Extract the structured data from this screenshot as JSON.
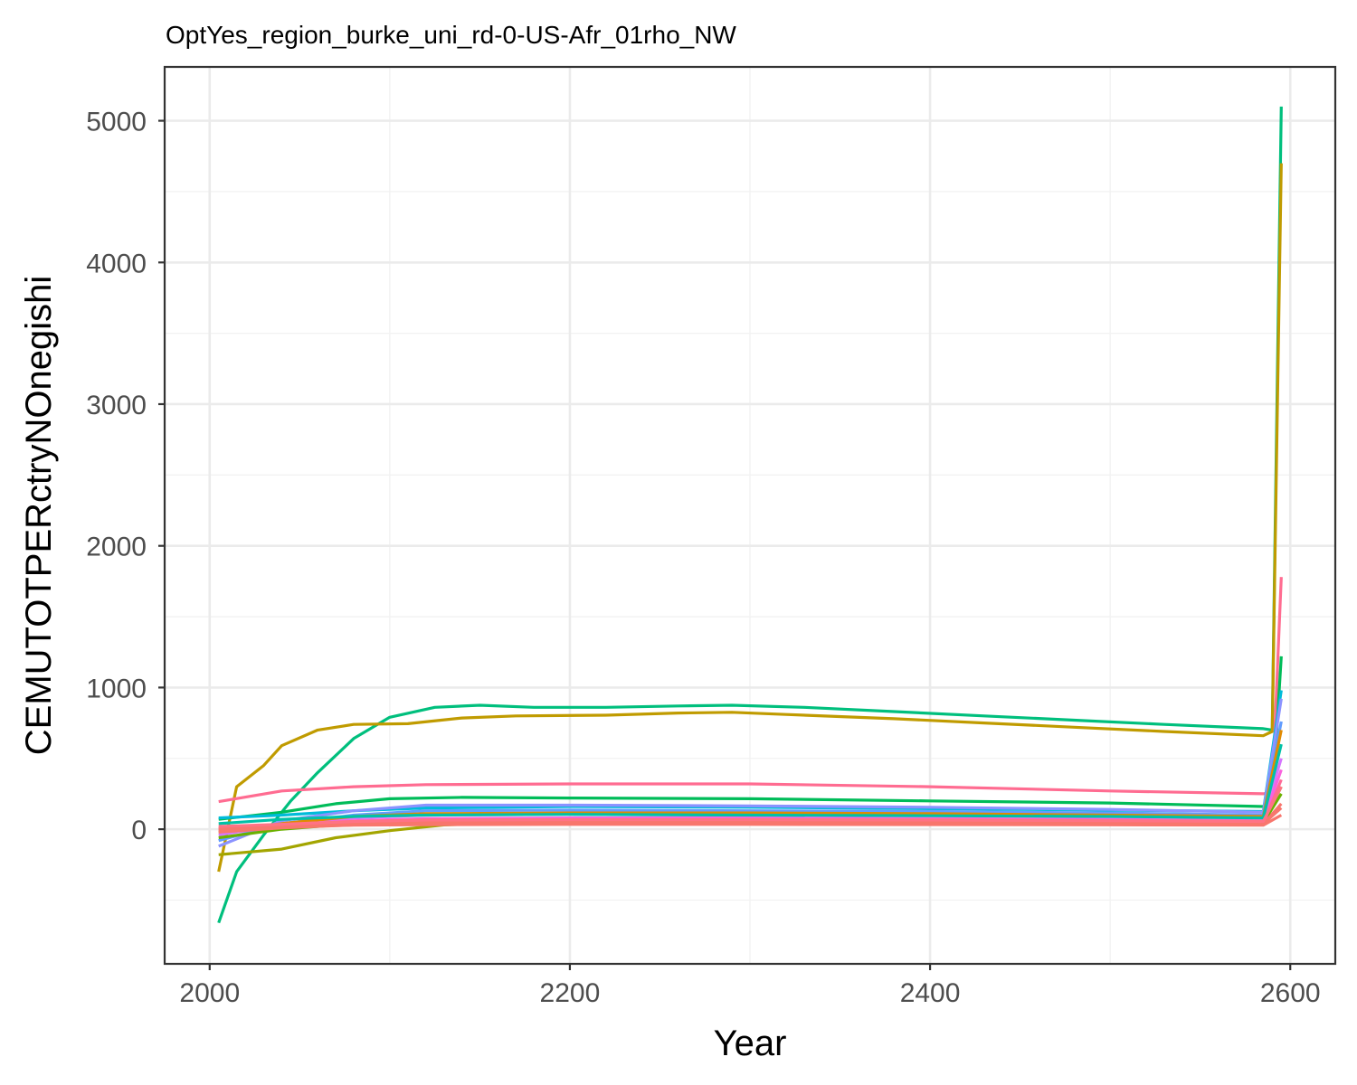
{
  "chart_data": {
    "type": "line",
    "title": "OptYes_region_burke_uni_rd-0-US-Afr_01rho_NW",
    "xlabel": "Year",
    "ylabel": "CEMUTOTPERctryNOnegishi",
    "xlim": [
      1975,
      2625
    ],
    "ylim": [
      -950,
      5380
    ],
    "x_ticks": [
      2000,
      2200,
      2400,
      2600
    ],
    "x_tick_labels": [
      "2000",
      "2200",
      "2400",
      "2600"
    ],
    "y_ticks": [
      0,
      1000,
      2000,
      3000,
      4000,
      5000
    ],
    "y_tick_labels": [
      "0",
      "1000",
      "2000",
      "3000",
      "4000",
      "5000"
    ],
    "grid": true,
    "legend": "none",
    "series": [
      {
        "color": "#00BF7D",
        "points": [
          [
            2005,
            -660
          ],
          [
            2015,
            -300
          ],
          [
            2030,
            -40
          ],
          [
            2045,
            200
          ],
          [
            2060,
            400
          ],
          [
            2080,
            640
          ],
          [
            2100,
            790
          ],
          [
            2125,
            860
          ],
          [
            2150,
            875
          ],
          [
            2180,
            860
          ],
          [
            2220,
            860
          ],
          [
            2260,
            870
          ],
          [
            2290,
            875
          ],
          [
            2330,
            860
          ],
          [
            2380,
            830
          ],
          [
            2430,
            800
          ],
          [
            2480,
            770
          ],
          [
            2530,
            740
          ],
          [
            2585,
            710
          ],
          [
            2590,
            700
          ],
          [
            2595,
            5100
          ]
        ]
      },
      {
        "color": "#C09B00",
        "points": [
          [
            2005,
            -300
          ],
          [
            2015,
            300
          ],
          [
            2030,
            450
          ],
          [
            2040,
            590
          ],
          [
            2060,
            700
          ],
          [
            2080,
            740
          ],
          [
            2110,
            745
          ],
          [
            2140,
            785
          ],
          [
            2170,
            800
          ],
          [
            2220,
            805
          ],
          [
            2260,
            820
          ],
          [
            2290,
            825
          ],
          [
            2320,
            810
          ],
          [
            2380,
            780
          ],
          [
            2430,
            750
          ],
          [
            2480,
            720
          ],
          [
            2530,
            690
          ],
          [
            2585,
            660
          ],
          [
            2590,
            690
          ],
          [
            2595,
            4700
          ]
        ]
      },
      {
        "color": "#FF6C91",
        "points": [
          [
            2005,
            195
          ],
          [
            2040,
            270
          ],
          [
            2080,
            300
          ],
          [
            2120,
            315
          ],
          [
            2200,
            320
          ],
          [
            2300,
            320
          ],
          [
            2400,
            300
          ],
          [
            2500,
            270
          ],
          [
            2585,
            250
          ],
          [
            2590,
            260
          ],
          [
            2595,
            1780
          ]
        ]
      },
      {
        "color": "#00BC59",
        "points": [
          [
            2005,
            70
          ],
          [
            2040,
            120
          ],
          [
            2070,
            180
          ],
          [
            2100,
            215
          ],
          [
            2140,
            225
          ],
          [
            2200,
            220
          ],
          [
            2300,
            215
          ],
          [
            2400,
            200
          ],
          [
            2500,
            185
          ],
          [
            2585,
            160
          ],
          [
            2590,
            170
          ],
          [
            2595,
            1220
          ]
        ]
      },
      {
        "color": "#A3A500",
        "points": [
          [
            2005,
            -180
          ],
          [
            2040,
            -140
          ],
          [
            2070,
            -60
          ],
          [
            2100,
            -10
          ],
          [
            2130,
            30
          ],
          [
            2200,
            60
          ],
          [
            2300,
            70
          ],
          [
            2400,
            70
          ],
          [
            2500,
            60
          ],
          [
            2585,
            50
          ],
          [
            2595,
            300
          ]
        ]
      },
      {
        "color": "#00BBDA",
        "points": [
          [
            2005,
            80
          ],
          [
            2040,
            100
          ],
          [
            2080,
            130
          ],
          [
            2120,
            150
          ],
          [
            2200,
            160
          ],
          [
            2300,
            155
          ],
          [
            2400,
            145
          ],
          [
            2500,
            135
          ],
          [
            2585,
            125
          ],
          [
            2595,
            980
          ]
        ]
      },
      {
        "color": "#8B93FF",
        "points": [
          [
            2005,
            -120
          ],
          [
            2040,
            60
          ],
          [
            2080,
            130
          ],
          [
            2120,
            170
          ],
          [
            2200,
            170
          ],
          [
            2300,
            165
          ],
          [
            2400,
            155
          ],
          [
            2500,
            140
          ],
          [
            2585,
            120
          ],
          [
            2595,
            920
          ]
        ]
      },
      {
        "color": "#619CFF",
        "points": [
          [
            2005,
            -80
          ],
          [
            2040,
            40
          ],
          [
            2080,
            100
          ],
          [
            2120,
            130
          ],
          [
            2200,
            135
          ],
          [
            2300,
            130
          ],
          [
            2400,
            125
          ],
          [
            2500,
            115
          ],
          [
            2585,
            100
          ],
          [
            2595,
            760
          ]
        ]
      },
      {
        "color": "#D575FE",
        "points": [
          [
            2005,
            -40
          ],
          [
            2040,
            30
          ],
          [
            2080,
            80
          ],
          [
            2120,
            100
          ],
          [
            2200,
            105
          ],
          [
            2300,
            100
          ],
          [
            2400,
            95
          ],
          [
            2500,
            90
          ],
          [
            2585,
            80
          ],
          [
            2595,
            500
          ]
        ]
      },
      {
        "color": "#E18A00",
        "points": [
          [
            2005,
            -20
          ],
          [
            2040,
            40
          ],
          [
            2080,
            90
          ],
          [
            2120,
            110
          ],
          [
            2200,
            115
          ],
          [
            2300,
            115
          ],
          [
            2400,
            110
          ],
          [
            2500,
            100
          ],
          [
            2585,
            90
          ],
          [
            2595,
            700
          ]
        ]
      },
      {
        "color": "#F962DD",
        "points": [
          [
            2005,
            0
          ],
          [
            2040,
            30
          ],
          [
            2080,
            60
          ],
          [
            2120,
            75
          ],
          [
            2200,
            80
          ],
          [
            2300,
            80
          ],
          [
            2400,
            75
          ],
          [
            2500,
            70
          ],
          [
            2585,
            60
          ],
          [
            2595,
            420
          ]
        ]
      },
      {
        "color": "#00C1A7",
        "points": [
          [
            2005,
            40
          ],
          [
            2040,
            70
          ],
          [
            2080,
            90
          ],
          [
            2120,
            100
          ],
          [
            2200,
            105
          ],
          [
            2300,
            100
          ],
          [
            2400,
            95
          ],
          [
            2500,
            90
          ],
          [
            2585,
            80
          ],
          [
            2595,
            600
          ]
        ]
      },
      {
        "color": "#6BB100",
        "points": [
          [
            2005,
            -60
          ],
          [
            2040,
            0
          ],
          [
            2080,
            40
          ],
          [
            2120,
            55
          ],
          [
            2200,
            60
          ],
          [
            2300,
            60
          ],
          [
            2400,
            55
          ],
          [
            2500,
            50
          ],
          [
            2585,
            45
          ],
          [
            2595,
            250
          ]
        ]
      },
      {
        "color": "#F8766D",
        "points": [
          [
            2005,
            -20
          ],
          [
            2040,
            10
          ],
          [
            2080,
            30
          ],
          [
            2120,
            40
          ],
          [
            2200,
            45
          ],
          [
            2300,
            45
          ],
          [
            2400,
            42
          ],
          [
            2500,
            40
          ],
          [
            2585,
            35
          ],
          [
            2595,
            180
          ]
        ]
      },
      {
        "color": "#FF6A98",
        "points": [
          [
            2005,
            10
          ],
          [
            2040,
            25
          ],
          [
            2080,
            40
          ],
          [
            2120,
            50
          ],
          [
            2200,
            50
          ],
          [
            2300,
            50
          ],
          [
            2400,
            48
          ],
          [
            2500,
            45
          ],
          [
            2585,
            40
          ],
          [
            2595,
            350
          ]
        ]
      },
      {
        "color": "#F8766D",
        "points": [
          [
            2005,
            -10
          ],
          [
            2040,
            15
          ],
          [
            2080,
            35
          ],
          [
            2120,
            45
          ],
          [
            2200,
            48
          ],
          [
            2300,
            48
          ],
          [
            2400,
            46
          ],
          [
            2500,
            43
          ],
          [
            2585,
            38
          ],
          [
            2595,
            150
          ]
        ]
      },
      {
        "color": "#F8766D",
        "points": [
          [
            2005,
            5
          ],
          [
            2040,
            20
          ],
          [
            2080,
            28
          ],
          [
            2120,
            32
          ],
          [
            2200,
            34
          ],
          [
            2300,
            34
          ],
          [
            2400,
            33
          ],
          [
            2500,
            31
          ],
          [
            2585,
            28
          ],
          [
            2595,
            100
          ]
        ]
      },
      {
        "color": "#FF7385",
        "points": [
          [
            2005,
            20
          ],
          [
            2040,
            35
          ],
          [
            2080,
            55
          ],
          [
            2120,
            65
          ],
          [
            2200,
            68
          ],
          [
            2300,
            68
          ],
          [
            2400,
            65
          ],
          [
            2500,
            60
          ],
          [
            2585,
            55
          ],
          [
            2595,
            300
          ]
        ]
      }
    ]
  }
}
